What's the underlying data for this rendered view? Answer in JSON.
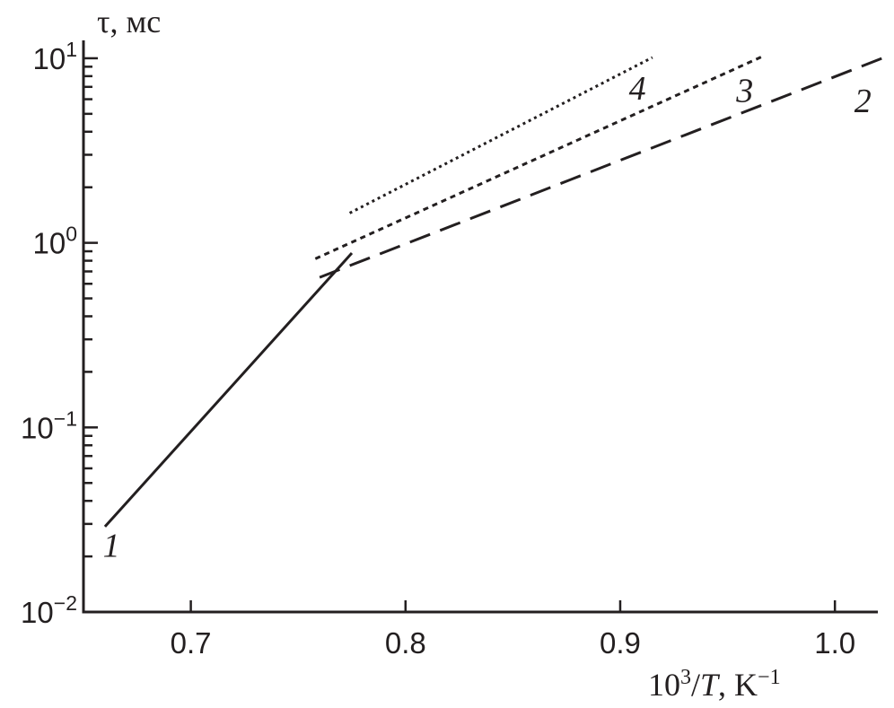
{
  "chart_data": {
    "type": "line",
    "ylabel": "τ, мс",
    "xlabel": {
      "base": "10",
      "base_exp": "3",
      "slash": "/",
      "var": "T",
      "unit": ", K",
      "unit_exp": "−1"
    },
    "y_scale": "log",
    "xlim": [
      0.65,
      1.02
    ],
    "ylim": [
      0.01,
      12.5
    ],
    "grid": false,
    "x_ticks": [
      {
        "value": 0.7,
        "label": "0.7"
      },
      {
        "value": 0.8,
        "label": "0.8"
      },
      {
        "value": 0.9,
        "label": "0.9"
      },
      {
        "value": 1.0,
        "label": "1.0"
      }
    ],
    "y_ticks": [
      {
        "value": 0.01,
        "base": "10",
        "exp": "−2"
      },
      {
        "value": 0.1,
        "base": "10",
        "exp": "−1"
      },
      {
        "value": 1,
        "base": "10",
        "exp": "0"
      },
      {
        "value": 10,
        "base": "10",
        "exp": "1"
      }
    ],
    "series": [
      {
        "label": "1",
        "style": "solid",
        "x": [
          0.66,
          0.775
        ],
        "y": [
          0.029,
          0.88
        ],
        "label_pos": [
          0.663,
          0.023
        ]
      },
      {
        "label": "2",
        "style": "dashed",
        "x": [
          0.76,
          1.022
        ],
        "y": [
          0.65,
          10.0
        ],
        "label_pos": [
          1.013,
          5.9
        ]
      },
      {
        "label": "3",
        "style": "dotted",
        "x": [
          0.758,
          0.966
        ],
        "y": [
          0.82,
          10.2
        ],
        "label_pos": [
          0.958,
          6.7
        ]
      },
      {
        "label": "4",
        "style": "fine",
        "x": [
          0.774,
          0.915
        ],
        "y": [
          1.45,
          10.1
        ],
        "label_pos": [
          0.908,
          6.9
        ]
      }
    ]
  }
}
